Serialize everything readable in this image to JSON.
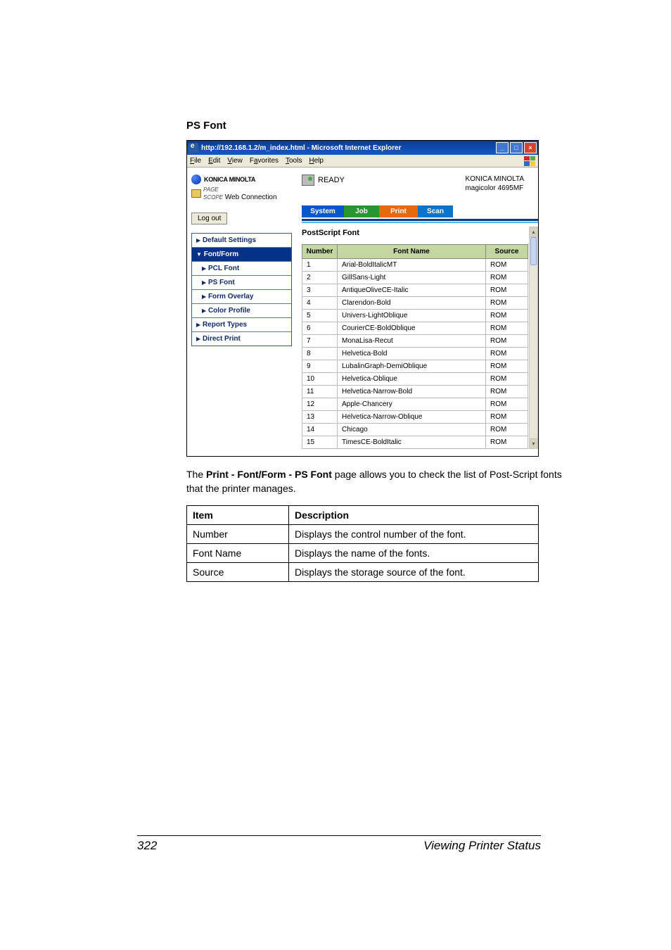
{
  "section": {
    "heading": "PS Font"
  },
  "window": {
    "title": "http://192.168.1.2/m_index.html - Microsoft Internet Explorer",
    "menu": {
      "file": "File",
      "edit": "Edit",
      "view": "View",
      "favorites": "Favorites",
      "tools": "Tools",
      "help": "Help"
    },
    "btns": {
      "min": "_",
      "max": "□",
      "close": "×"
    }
  },
  "brand": {
    "name": "KONICA MINOLTA",
    "psweb": "Web Connection",
    "page": "PAGE\nSCOPE"
  },
  "status": {
    "ready": "READY",
    "maker": "KONICA MINOLTA",
    "model": "magicolor 4695MF"
  },
  "logout": {
    "label": "Log out"
  },
  "tabs": {
    "system": "System",
    "job": "Job",
    "print": "Print",
    "scan": "Scan"
  },
  "sidenav": {
    "default": "Default Settings",
    "fontform": "Font/Form",
    "pcl": "PCL Font",
    "ps": "PS Font",
    "overlay": "Form Overlay",
    "color": "Color Profile",
    "report": "Report Types",
    "direct": "Direct Print"
  },
  "tri": {
    "right": "▶",
    "down": "▼"
  },
  "fontTable": {
    "title": "PostScript Font",
    "headers": {
      "number": "Number",
      "name": "Font Name",
      "source": "Source"
    },
    "rows": [
      {
        "n": "1",
        "name": "Arial-BoldItalicMT",
        "src": "ROM"
      },
      {
        "n": "2",
        "name": "GillSans-Light",
        "src": "ROM"
      },
      {
        "n": "3",
        "name": "AntiqueOliveCE-Italic",
        "src": "ROM"
      },
      {
        "n": "4",
        "name": "Clarendon-Bold",
        "src": "ROM"
      },
      {
        "n": "5",
        "name": "Univers-LightOblique",
        "src": "ROM"
      },
      {
        "n": "6",
        "name": "CourierCE-BoldOblique",
        "src": "ROM"
      },
      {
        "n": "7",
        "name": "MonaLisa-Recut",
        "src": "ROM"
      },
      {
        "n": "8",
        "name": "Helvetica-Bold",
        "src": "ROM"
      },
      {
        "n": "9",
        "name": "LubalinGraph-DemiOblique",
        "src": "ROM"
      },
      {
        "n": "10",
        "name": "Helvetica-Oblique",
        "src": "ROM"
      },
      {
        "n": "11",
        "name": "Helvetica-Narrow-Bold",
        "src": "ROM"
      },
      {
        "n": "12",
        "name": "Apple-Chancery",
        "src": "ROM"
      },
      {
        "n": "13",
        "name": "Helvetica-Narrow-Oblique",
        "src": "ROM"
      },
      {
        "n": "14",
        "name": "Chicago",
        "src": "ROM"
      },
      {
        "n": "15",
        "name": "TimesCE-BoldItalic",
        "src": "ROM"
      }
    ]
  },
  "bodyText": {
    "prefix": "The ",
    "bold": "Print - Font/Form - PS Font",
    "suffix": " page allows you to check the list of Post-Script fonts that the printer manages."
  },
  "descTable": {
    "headers": {
      "item": "Item",
      "desc": "Description"
    },
    "rows": [
      {
        "item": "Number",
        "desc": "Displays the control number of the font."
      },
      {
        "item": "Font Name",
        "desc": "Displays the name of the fonts."
      },
      {
        "item": "Source",
        "desc": "Displays the storage source of the font."
      }
    ]
  },
  "footer": {
    "page": "322",
    "title": "Viewing Printer Status"
  }
}
